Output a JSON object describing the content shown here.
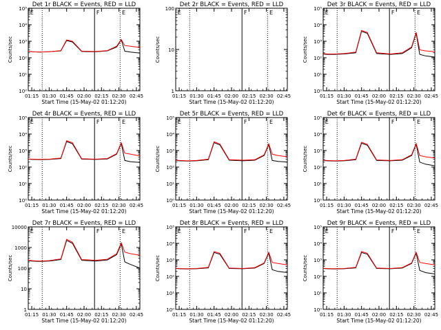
{
  "colors": {
    "events": "#000000",
    "lld": "#ff0000",
    "axis": "#000000",
    "background": "#ffffff"
  },
  "chart_data": [
    {
      "type": "line",
      "title": "Det 1r BLACK = Events, RED = LLD",
      "xlabel": "Start Time (15-May-02 01:12:20)",
      "ylabel": "Counts/sec",
      "y_scale": "log",
      "ylim": [
        1,
        100000
      ],
      "yticks": [
        1,
        10,
        100,
        1000,
        10000,
        100000
      ],
      "ytick_labels": [
        "10⁰",
        "10¹",
        "10²",
        "10³",
        "10⁴",
        "10⁵"
      ],
      "x": [
        "01:12",
        "01:15",
        "01:22",
        "01:30",
        "01:40",
        "01:45",
        "01:50",
        "01:58",
        "02:10",
        "02:20",
        "02:28",
        "02:32",
        "02:35",
        "02:40",
        "02:48"
      ],
      "xlim": [
        "01:12",
        "02:48"
      ],
      "xticks": [
        "01:15",
        "01:30",
        "01:45",
        "02:00",
        "02:15",
        "02:30",
        "02:45"
      ],
      "markers": {
        "dotted": [
          "01:24",
          "02:31"
        ],
        "solid": [
          "02:09"
        ],
        "letters": [
          {
            "time": "01:13",
            "text": "E"
          },
          {
            "time": "02:10",
            "text": "F"
          },
          {
            "time": "02:32",
            "text": "E"
          }
        ]
      },
      "series": [
        {
          "name": "Events",
          "values": [
            250,
            230,
            220,
            230,
            260,
            1100,
            900,
            240,
            230,
            260,
            450,
            1200,
            250,
            220,
            190
          ]
        },
        {
          "name": "LLD",
          "values": [
            250,
            230,
            220,
            230,
            270,
            1200,
            1000,
            250,
            240,
            270,
            500,
            1300,
            550,
            500,
            420
          ]
        }
      ]
    },
    {
      "type": "line",
      "title": "Det 2r BLACK = Events, RED = LLD",
      "xlabel": "Start Time (15-May-02 01:12:20)",
      "ylabel": "Counts/sec",
      "y_scale": "log",
      "ylim": [
        1,
        100
      ],
      "yticks": [
        1,
        10,
        100
      ],
      "ytick_labels": [
        "1",
        "10",
        "100"
      ],
      "x": [],
      "xlim": [
        "01:12",
        "02:48"
      ],
      "xticks": [
        "01:15",
        "01:30",
        "01:45",
        "02:00",
        "02:15",
        "02:30",
        "02:45"
      ],
      "markers": {
        "dotted": [
          "01:24",
          "02:31"
        ],
        "solid": [
          "02:09"
        ],
        "letters": [
          {
            "time": "01:13",
            "text": "E"
          },
          {
            "time": "02:10",
            "text": "F"
          },
          {
            "time": "02:32",
            "text": "E"
          }
        ]
      },
      "series": []
    },
    {
      "type": "line",
      "title": "Det 3r BLACK = Events, RED = LLD",
      "xlabel": "Start Time (15-May-02 01:12:20)",
      "ylabel": "Counts/sec",
      "y_scale": "log",
      "ylim": [
        1,
        100000
      ],
      "yticks": [
        1,
        10,
        100,
        1000,
        10000,
        100000
      ],
      "ytick_labels": [
        "10⁰",
        "10¹",
        "10²",
        "10³",
        "10⁴",
        "10⁵"
      ],
      "x": [
        "01:12",
        "01:15",
        "01:22",
        "01:30",
        "01:40",
        "01:45",
        "01:50",
        "01:58",
        "02:10",
        "02:20",
        "02:28",
        "02:32",
        "02:35",
        "02:40",
        "02:48"
      ],
      "xlim": [
        "01:12",
        "02:48"
      ],
      "xticks": [
        "01:15",
        "01:30",
        "01:45",
        "02:00",
        "02:15",
        "02:30",
        "02:45"
      ],
      "markers": {
        "dotted": [
          "01:24",
          "02:31"
        ],
        "solid": [
          "02:09"
        ],
        "letters": [
          {
            "time": "01:13",
            "text": "E"
          },
          {
            "time": "02:10",
            "text": "F"
          },
          {
            "time": "02:32",
            "text": "E"
          }
        ]
      },
      "series": [
        {
          "name": "Events",
          "values": [
            170,
            160,
            160,
            170,
            200,
            4000,
            3000,
            180,
            160,
            180,
            400,
            3000,
            160,
            130,
            110
          ]
        },
        {
          "name": "LLD",
          "values": [
            180,
            170,
            170,
            180,
            220,
            4500,
            3400,
            200,
            170,
            200,
            450,
            3500,
            300,
            260,
            230
          ]
        }
      ]
    },
    {
      "type": "line",
      "title": "Det 4r BLACK = Events, RED = LLD",
      "xlabel": "Start Time (15-May-02 01:12:20)",
      "ylabel": "Counts/sec",
      "y_scale": "log",
      "ylim": [
        1,
        100000
      ],
      "yticks": [
        1,
        10,
        100,
        1000,
        10000,
        100000
      ],
      "ytick_labels": [
        "10⁰",
        "10¹",
        "10²",
        "10³",
        "10⁴",
        "10⁵"
      ],
      "x": [
        "01:12",
        "01:15",
        "01:22",
        "01:30",
        "01:40",
        "01:45",
        "01:50",
        "01:58",
        "02:10",
        "02:20",
        "02:28",
        "02:32",
        "02:35",
        "02:40",
        "02:48"
      ],
      "xlim": [
        "01:12",
        "02:48"
      ],
      "xticks": [
        "01:15",
        "01:30",
        "01:45",
        "02:00",
        "02:15",
        "02:30",
        "02:45"
      ],
      "markers": {
        "dotted": [
          "01:24",
          "02:31"
        ],
        "solid": [
          "02:09"
        ],
        "letters": [
          {
            "time": "01:13",
            "text": "E"
          },
          {
            "time": "02:10",
            "text": "F"
          },
          {
            "time": "02:32",
            "text": "E"
          }
        ]
      },
      "series": [
        {
          "name": "Events",
          "values": [
            300,
            290,
            280,
            290,
            330,
            3500,
            2600,
            300,
            290,
            310,
            600,
            2700,
            250,
            210,
            190
          ]
        },
        {
          "name": "LLD",
          "values": [
            310,
            300,
            290,
            300,
            350,
            4000,
            3000,
            320,
            300,
            330,
            650,
            3000,
            700,
            600,
            480
          ]
        }
      ]
    },
    {
      "type": "line",
      "title": "Det 5r BLACK = Events, RED = LLD",
      "xlabel": "Start Time (15-May-02 01:12:20)",
      "ylabel": "Counts/sec",
      "y_scale": "log",
      "ylim": [
        1,
        100000
      ],
      "yticks": [
        1,
        10,
        100,
        1000,
        10000,
        100000
      ],
      "ytick_labels": [
        "10⁰",
        "10¹",
        "10²",
        "10³",
        "10⁴",
        "10⁵"
      ],
      "x": [
        "01:12",
        "01:15",
        "01:22",
        "01:30",
        "01:40",
        "01:45",
        "01:50",
        "01:58",
        "02:10",
        "02:20",
        "02:28",
        "02:32",
        "02:35",
        "02:40",
        "02:48"
      ],
      "xlim": [
        "01:12",
        "02:48"
      ],
      "xticks": [
        "01:15",
        "01:30",
        "01:45",
        "02:00",
        "02:15",
        "02:30",
        "02:45"
      ],
      "markers": {
        "dotted": [
          "01:24",
          "02:31"
        ],
        "solid": [
          "02:09"
        ],
        "letters": [
          {
            "time": "01:13",
            "text": "E"
          },
          {
            "time": "02:10",
            "text": "F"
          },
          {
            "time": "02:32",
            "text": "E"
          }
        ]
      },
      "series": [
        {
          "name": "Events",
          "values": [
            250,
            240,
            230,
            240,
            280,
            3000,
            2200,
            260,
            240,
            260,
            500,
            2300,
            250,
            220,
            200
          ]
        },
        {
          "name": "LLD",
          "values": [
            260,
            250,
            240,
            250,
            300,
            3400,
            2500,
            280,
            260,
            280,
            550,
            2600,
            600,
            500,
            420
          ]
        }
      ]
    },
    {
      "type": "line",
      "title": "Det 6r BLACK = Events, RED = LLD",
      "xlabel": "Start Time (15-May-02 01:12:20)",
      "ylabel": "Counts/sec",
      "y_scale": "log",
      "ylim": [
        1,
        100000
      ],
      "yticks": [
        1,
        10,
        100,
        1000,
        10000,
        100000
      ],
      "ytick_labels": [
        "10⁰",
        "10¹",
        "10²",
        "10³",
        "10⁴",
        "10⁵"
      ],
      "x": [
        "01:12",
        "01:15",
        "01:22",
        "01:30",
        "01:40",
        "01:45",
        "01:50",
        "01:58",
        "02:10",
        "02:20",
        "02:28",
        "02:32",
        "02:35",
        "02:40",
        "02:48"
      ],
      "xlim": [
        "01:12",
        "02:48"
      ],
      "xticks": [
        "01:15",
        "01:30",
        "01:45",
        "02:00",
        "02:15",
        "02:30",
        "02:45"
      ],
      "markers": {
        "dotted": [
          "01:24",
          "02:31"
        ],
        "solid": [
          "02:09"
        ],
        "letters": [
          {
            "time": "01:13",
            "text": "E"
          },
          {
            "time": "02:10",
            "text": "F"
          },
          {
            "time": "02:32",
            "text": "E"
          }
        ]
      },
      "series": [
        {
          "name": "Events",
          "values": [
            250,
            240,
            230,
            240,
            280,
            2800,
            2100,
            250,
            240,
            260,
            500,
            2400,
            200,
            150,
            120
          ]
        },
        {
          "name": "LLD",
          "values": [
            260,
            250,
            240,
            250,
            300,
            3200,
            2400,
            270,
            250,
            280,
            550,
            2700,
            500,
            420,
            350
          ]
        }
      ]
    },
    {
      "type": "line",
      "title": "Det 7r BLACK = Events, RED = LLD",
      "xlabel": "Start Time (15-May-02 01:12:20)",
      "ylabel": "Counts/sec",
      "y_scale": "log",
      "ylim": [
        1,
        10000
      ],
      "yticks": [
        1,
        10,
        100,
        1000,
        10000
      ],
      "ytick_labels": [
        "1",
        "10",
        "100",
        "1000",
        "10000"
      ],
      "x": [
        "01:12",
        "01:15",
        "01:22",
        "01:30",
        "01:40",
        "01:45",
        "01:50",
        "01:58",
        "02:10",
        "02:20",
        "02:28",
        "02:32",
        "02:35",
        "02:40",
        "02:48"
      ],
      "xlim": [
        "01:12",
        "02:48"
      ],
      "xticks": [
        "01:15",
        "01:30",
        "01:45",
        "02:00",
        "02:15",
        "02:30",
        "02:45"
      ],
      "markers": {
        "dotted": [
          "01:24",
          "02:31"
        ],
        "solid": [
          "02:09"
        ],
        "letters": [
          {
            "time": "01:13",
            "text": "E"
          },
          {
            "time": "02:10",
            "text": "F"
          },
          {
            "time": "02:32",
            "text": "E"
          }
        ]
      },
      "series": [
        {
          "name": "Events",
          "values": [
            240,
            220,
            210,
            220,
            260,
            2200,
            1600,
            240,
            220,
            250,
            450,
            1500,
            200,
            150,
            100
          ]
        },
        {
          "name": "LLD",
          "values": [
            250,
            230,
            220,
            230,
            280,
            2500,
            1800,
            260,
            240,
            270,
            500,
            1700,
            600,
            500,
            420
          ]
        }
      ]
    },
    {
      "type": "line",
      "title": "Det 8r BLACK = Events, RED = LLD",
      "xlabel": "Start Time (15-May-02 01:12:20)",
      "ylabel": "Counts/sec",
      "y_scale": "log",
      "ylim": [
        1,
        100000
      ],
      "yticks": [
        1,
        10,
        100,
        1000,
        10000,
        100000
      ],
      "ytick_labels": [
        "10⁰",
        "10¹",
        "10²",
        "10³",
        "10⁴",
        "10⁵"
      ],
      "x": [
        "01:12",
        "01:15",
        "01:22",
        "01:30",
        "01:40",
        "01:45",
        "01:50",
        "01:58",
        "02:10",
        "02:20",
        "02:28",
        "02:32",
        "02:35",
        "02:40",
        "02:48"
      ],
      "xlim": [
        "01:12",
        "02:48"
      ],
      "xticks": [
        "01:15",
        "01:30",
        "01:45",
        "02:00",
        "02:15",
        "02:30",
        "02:45"
      ],
      "markers": {
        "dotted": [
          "01:24",
          "02:31"
        ],
        "solid": [
          "02:09"
        ],
        "letters": [
          {
            "time": "01:13",
            "text": "E"
          },
          {
            "time": "02:10",
            "text": "F"
          },
          {
            "time": "02:32",
            "text": "E"
          }
        ]
      },
      "series": [
        {
          "name": "Events",
          "values": [
            300,
            290,
            280,
            290,
            330,
            2800,
            2200,
            300,
            290,
            320,
            600,
            2600,
            250,
            200,
            170
          ]
        },
        {
          "name": "LLD",
          "values": [
            310,
            300,
            290,
            300,
            350,
            3200,
            2500,
            320,
            300,
            340,
            650,
            2900,
            700,
            600,
            500
          ]
        }
      ]
    },
    {
      "type": "line",
      "title": "Det 9r BLACK = Events, RED = LLD",
      "xlabel": "Start Time (15-May-02 01:12:20)",
      "ylabel": "Counts/sec",
      "y_scale": "log",
      "ylim": [
        1,
        100000
      ],
      "yticks": [
        1,
        10,
        100,
        1000,
        10000,
        100000
      ],
      "ytick_labels": [
        "10⁰",
        "10¹",
        "10²",
        "10³",
        "10⁴",
        "10⁵"
      ],
      "x": [
        "01:12",
        "01:15",
        "01:22",
        "01:30",
        "01:40",
        "01:45",
        "01:50",
        "01:58",
        "02:10",
        "02:20",
        "02:28",
        "02:32",
        "02:35",
        "02:40",
        "02:48"
      ],
      "xlim": [
        "01:12",
        "02:48"
      ],
      "xticks": [
        "01:15",
        "01:30",
        "01:45",
        "02:00",
        "02:15",
        "02:30",
        "02:45"
      ],
      "markers": {
        "dotted": [
          "01:24",
          "02:31"
        ],
        "solid": [
          "02:09"
        ],
        "letters": [
          {
            "time": "01:13",
            "text": "E"
          },
          {
            "time": "02:10",
            "text": "F"
          },
          {
            "time": "02:32",
            "text": "E"
          }
        ]
      },
      "series": [
        {
          "name": "Events",
          "values": [
            300,
            290,
            280,
            290,
            330,
            2800,
            2200,
            300,
            290,
            320,
            600,
            2600,
            230,
            170,
            140
          ]
        },
        {
          "name": "LLD",
          "values": [
            310,
            300,
            290,
            300,
            350,
            3200,
            2500,
            320,
            300,
            340,
            650,
            2900,
            700,
            600,
            500
          ]
        }
      ]
    }
  ]
}
